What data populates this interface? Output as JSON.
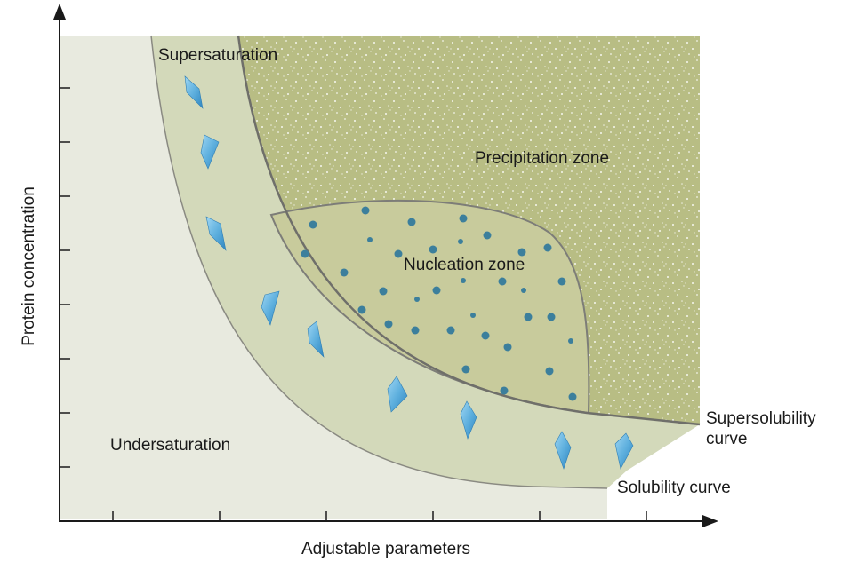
{
  "diagram": {
    "y_axis_label": "Protein concentration",
    "x_axis_label": "Adjustable parameters",
    "regions": {
      "supersaturation": "Supersaturation",
      "precipitation": "Precipitation zone",
      "nucleation": "Nucleation zone",
      "undersaturation": "Undersaturation"
    },
    "curves": {
      "supersolubility_line1": "Supersolubility",
      "supersolubility_line2": "curve",
      "solubility": "Solubility curve"
    },
    "colors": {
      "undersaturation": "#e8eadf",
      "supersaturation_band": "#d3d9ba",
      "precipitation": "#b8bd84",
      "nucleation": "#c8cb9c",
      "nuclei": "#3c7f9c",
      "crystal": "#5fb0de",
      "axis": "#1a1a1a"
    },
    "icons": {
      "crystal": "crystal-icon",
      "nucleus": "nucleus-dot"
    }
  }
}
